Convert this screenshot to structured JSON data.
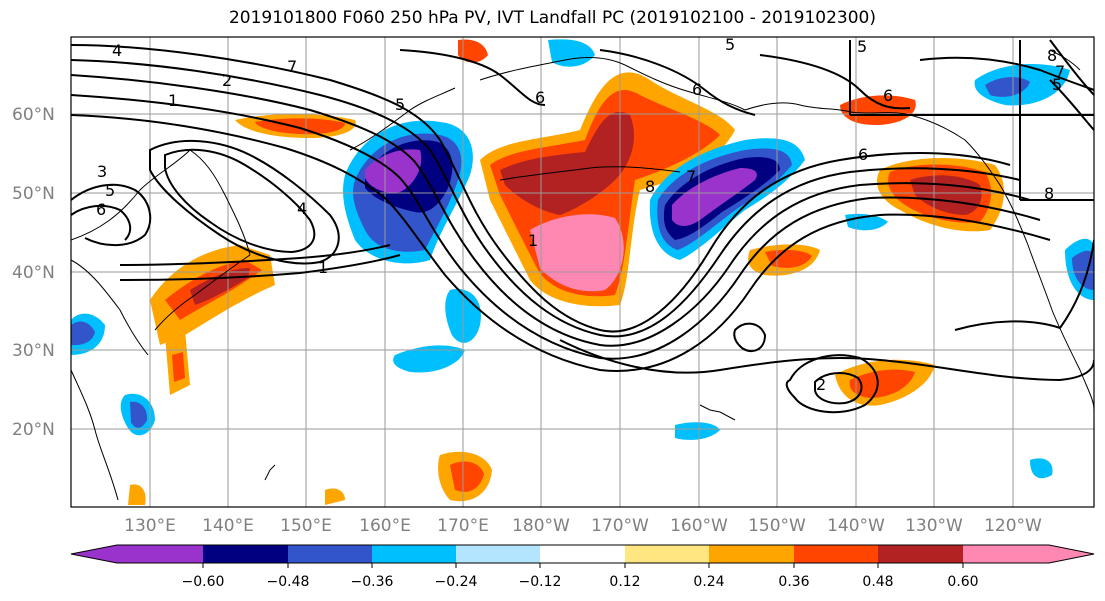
{
  "title": "2019101800 F060 250 hPa PV, IVT Landfall PC (2019102100 - 2019102300)",
  "map": {
    "lat_labels": [
      "60°N",
      "50°N",
      "40°N",
      "30°N",
      "20°N"
    ],
    "lon_labels": [
      "130°E",
      "140°E",
      "150°E",
      "160°E",
      "170°E",
      "180°W",
      "170°W",
      "160°W",
      "150°W",
      "140°W",
      "130°W",
      "120°W"
    ],
    "contour_labels": [
      "4",
      "7",
      "2",
      "1",
      "3",
      "5",
      "6",
      "4",
      "1",
      "5",
      "6",
      "8",
      "6",
      "7",
      "6",
      "5",
      "8",
      "8",
      "7",
      "5",
      "2",
      "1",
      "5",
      "6"
    ]
  },
  "colorbar": {
    "ticks": [
      "−0.60",
      "−0.48",
      "−0.36",
      "−0.24",
      "−0.12",
      "0.12",
      "0.24",
      "0.36",
      "0.48",
      "0.60"
    ],
    "colors": [
      "#9933cc",
      "#000080",
      "#3355cc",
      "#00bfff",
      "#b3e5ff",
      "#ffffff",
      "#ffe680",
      "#ffa500",
      "#ff4500",
      "#b22222",
      "#ff88b3"
    ]
  }
}
